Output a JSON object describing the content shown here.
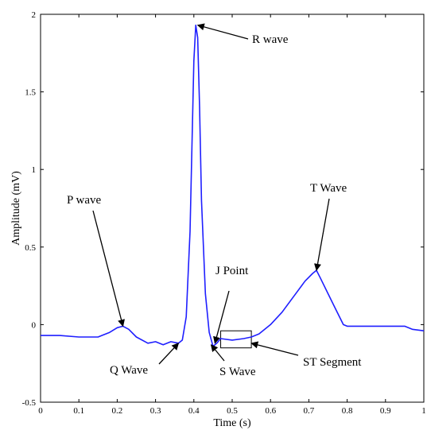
{
  "chart_data": {
    "type": "line",
    "title": "",
    "xlabel": "Time (s)",
    "ylabel": "Amplitude (mV)",
    "xlim": [
      0,
      1
    ],
    "ylim": [
      -0.5,
      2
    ],
    "grid": false,
    "x_ticks": [
      "0",
      "0.1",
      "0.2",
      "0.3",
      "0.4",
      "0.5",
      "0.6",
      "0.7",
      "0.8",
      "0.9",
      "1"
    ],
    "y_ticks": [
      "-0.5",
      "0",
      "0.5",
      "1",
      "1.5",
      "2"
    ],
    "series": [
      {
        "color": "#1f1fff",
        "x": [
          0,
          0.05,
          0.1,
          0.15,
          0.18,
          0.2,
          0.215,
          0.23,
          0.25,
          0.28,
          0.3,
          0.32,
          0.34,
          0.36,
          0.37,
          0.38,
          0.39,
          0.4,
          0.405,
          0.41,
          0.415,
          0.42,
          0.43,
          0.44,
          0.45,
          0.46,
          0.47,
          0.5,
          0.53,
          0.55,
          0.57,
          0.6,
          0.63,
          0.66,
          0.69,
          0.71,
          0.72,
          0.73,
          0.75,
          0.77,
          0.79,
          0.8,
          0.85,
          0.9,
          0.92,
          0.95,
          0.97,
          1.0
        ],
        "y": [
          -0.07,
          -0.07,
          -0.08,
          -0.08,
          -0.05,
          -0.02,
          -0.01,
          -0.03,
          -0.08,
          -0.12,
          -0.11,
          -0.13,
          -0.11,
          -0.12,
          -0.1,
          0.05,
          0.6,
          1.7,
          1.93,
          1.85,
          1.4,
          0.8,
          0.2,
          -0.05,
          -0.14,
          -0.12,
          -0.09,
          -0.1,
          -0.09,
          -0.08,
          -0.06,
          0.0,
          0.08,
          0.18,
          0.28,
          0.33,
          0.35,
          0.3,
          0.2,
          0.1,
          0.0,
          -0.01,
          -0.01,
          -0.01,
          -0.01,
          -0.01,
          -0.03,
          -0.04
        ]
      }
    ],
    "annotations": [
      {
        "label": "R wave",
        "target": [
          0.41,
          1.93
        ]
      },
      {
        "label": "P wave",
        "target": [
          0.215,
          -0.01
        ]
      },
      {
        "label": "T Wave",
        "target": [
          0.72,
          0.35
        ]
      },
      {
        "label": "J Point",
        "target": [
          0.455,
          -0.12
        ]
      },
      {
        "label": "Q Wave",
        "target": [
          0.36,
          -0.12
        ]
      },
      {
        "label": "S Wave",
        "target": [
          0.445,
          -0.13
        ]
      },
      {
        "label": "ST Segment",
        "target": [
          0.55,
          -0.12
        ]
      }
    ],
    "st_box": {
      "x": [
        0.47,
        0.55
      ],
      "y": [
        -0.15,
        -0.04
      ]
    }
  }
}
